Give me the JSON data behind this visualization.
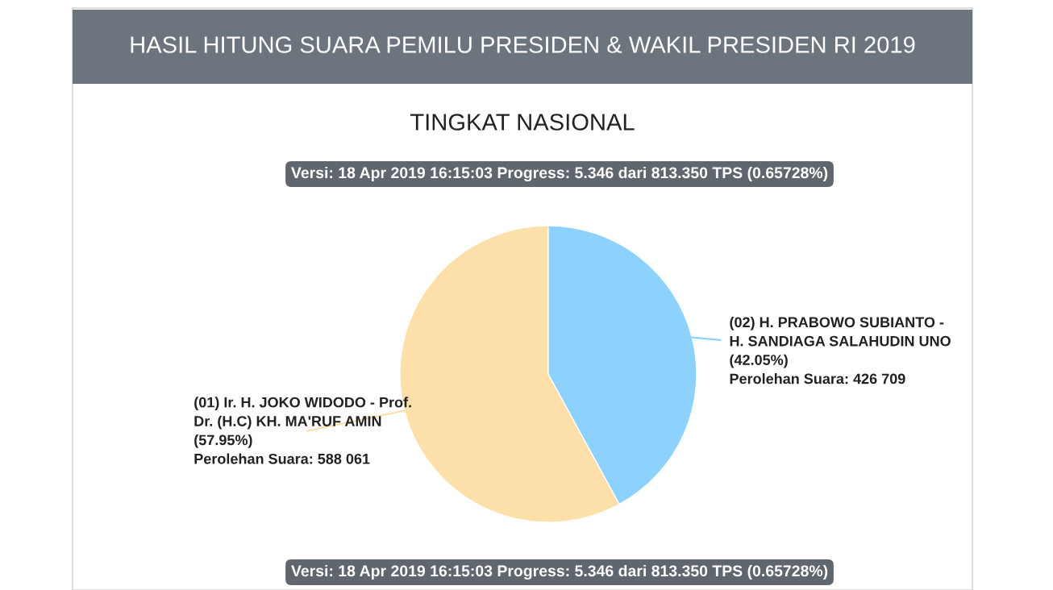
{
  "chart_data": {
    "type": "pie",
    "title": "HASIL HITUNG SUARA PEMILU PRESIDEN & WAKIL PRESIDEN RI 2019",
    "subtitle": "TINGKAT NASIONAL",
    "categories": [
      "(01) Ir. H. JOKO WIDODO - Prof.\nDr. (H.C) KH. MA'RUF AMIN",
      "(02) H. PRABOWO SUBIANTO -\nH. SANDIAGA SALAHUDIN UNO"
    ],
    "values": [
      57.95,
      42.05
    ],
    "value_labels": [
      "(57.95%)\nPerolehan Suara: 588 061",
      "(42.05%)\nPerolehan Suara: 426 709"
    ],
    "colors": [
      "#fddfa9",
      "#8dd2fd"
    ],
    "annotations": [
      "Versi: 18 Apr 2019 16:15:03 Progress: 5.346 dari 813.350 TPS (0.65728%)",
      "Versi: 18 Apr 2019 16:15:03 Progress: 5.346 dari 813.350 TPS (0.65728%)"
    ],
    "legend": false
  }
}
